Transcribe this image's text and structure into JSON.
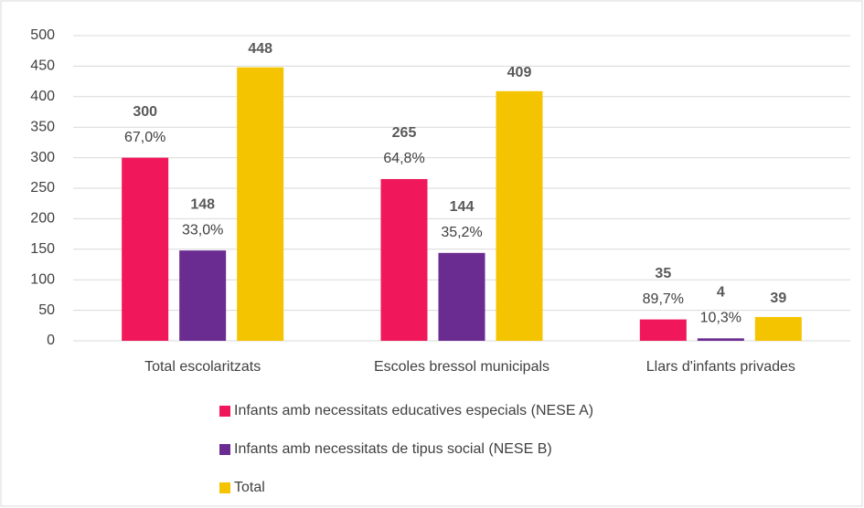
{
  "chart_data": {
    "type": "bar",
    "categories": [
      "Total escolaritzats",
      "Escoles bressol municipals",
      "Llars d'infants privades"
    ],
    "series": [
      {
        "name": "Infants amb necessitats educatives especials (NESE A)",
        "color": "#f0185a",
        "values": [
          300,
          265,
          35
        ],
        "percent_labels": [
          "67,0%",
          "64,8%",
          "89,7%"
        ]
      },
      {
        "name": "Infants amb necessitats de tipus social (NESE B)",
        "color": "#6a2c91",
        "values": [
          148,
          144,
          4
        ],
        "percent_labels": [
          "33,0%",
          "35,2%",
          "10,3%"
        ]
      },
      {
        "name": "Total",
        "color": "#f5c400",
        "values": [
          448,
          409,
          39
        ]
      }
    ],
    "ylim": [
      0,
      500
    ],
    "yticks": [
      0,
      50,
      100,
      150,
      200,
      250,
      300,
      350,
      400,
      450,
      500
    ],
    "grid": true,
    "legend": "bottom"
  }
}
